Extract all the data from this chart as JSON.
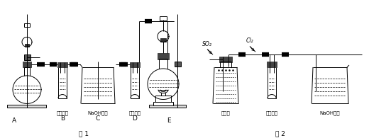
{
  "bg_color": "#ffffff",
  "lc": "#000000",
  "fig1_label": "图 1",
  "fig2_label": "图 2",
  "label_A": "A",
  "label_B": "B",
  "label_C": "C",
  "label_D": "D",
  "label_E": "E",
  "sub_B": "品红溶液",
  "sub_C": "NaOH溶液",
  "sub_D": "品红溶液",
  "sub_lhs": "液硫酸",
  "sub_tt2": "品红溶液",
  "sub_bk2": "NaOH溶液",
  "so2_label": "SO₂",
  "cl2_label": "Cl₂"
}
